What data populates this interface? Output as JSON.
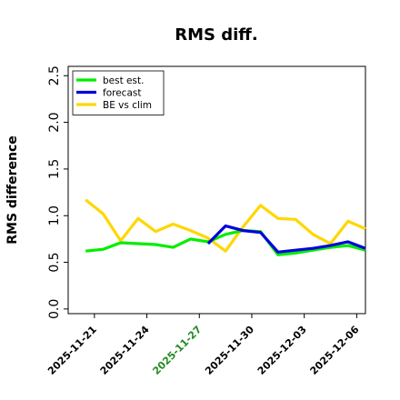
{
  "chart_data": {
    "type": "line",
    "title": "RMS diff.",
    "xlabel": "",
    "ylabel": "RMS difference",
    "xlim": [
      "2025-11-19T12:00",
      "2025-12-06T12:00"
    ],
    "ylim": [
      -0.05,
      2.6
    ],
    "yticks": [
      0.0,
      0.5,
      1.0,
      1.5,
      2.0,
      2.5
    ],
    "ytick_labels": [
      "0.0",
      "0.5",
      "1.0",
      "1.5",
      "2.0",
      "2.5"
    ],
    "xticks": [
      "2025-11-21",
      "2025-11-24",
      "2025-11-27",
      "2025-11-30",
      "2025-12-03",
      "2025-12-06"
    ],
    "xtick_labels": [
      "2025-11-21",
      "2025-11-24",
      "2025-11-27",
      "2025-11-30",
      "2025-12-03",
      "2025-12-06"
    ],
    "xtick_highlight": "2025-11-27",
    "xtick_highlight_color": "#228b22",
    "legend_position": "top-left",
    "grid": false,
    "series": [
      {
        "name": "best est.",
        "color": "#00ee00",
        "x": [
          "2025-11-20T12:00",
          "2025-11-21T12:00",
          "2025-11-22T12:00",
          "2025-11-23T12:00",
          "2025-11-24T12:00",
          "2025-11-25T12:00",
          "2025-11-26T12:00",
          "2025-11-27T12:00",
          "2025-11-28T12:00",
          "2025-11-29T12:00",
          "2025-11-30T12:00",
          "2025-12-01T12:00",
          "2025-12-02T12:00",
          "2025-12-03T12:00",
          "2025-12-04T12:00",
          "2025-12-05T12:00",
          "2025-12-06T12:00"
        ],
        "y": [
          0.62,
          0.64,
          0.71,
          0.7,
          0.69,
          0.66,
          0.75,
          0.72,
          0.8,
          0.84,
          0.83,
          0.58,
          0.6,
          0.63,
          0.66,
          0.68,
          0.63
        ]
      },
      {
        "name": "forecast",
        "color": "#0000dd",
        "x": [
          "2025-11-27T12:00",
          "2025-11-28T12:00",
          "2025-11-29T12:00",
          "2025-11-30T12:00",
          "2025-12-01T12:00",
          "2025-12-02T12:00",
          "2025-12-03T12:00",
          "2025-12-04T12:00",
          "2025-12-05T12:00",
          "2025-12-06T12:00"
        ],
        "y": [
          0.7,
          0.89,
          0.84,
          0.82,
          0.61,
          0.63,
          0.65,
          0.68,
          0.72,
          0.65
        ]
      },
      {
        "name": "BE vs clim",
        "color": "#ffd700",
        "x": [
          "2025-11-20T12:00",
          "2025-11-21T12:00",
          "2025-11-22T12:00",
          "2025-11-23T12:00",
          "2025-11-24T12:00",
          "2025-11-25T12:00",
          "2025-11-26T12:00",
          "2025-11-27T12:00",
          "2025-11-28T12:00",
          "2025-11-29T12:00",
          "2025-11-30T12:00",
          "2025-12-01T12:00",
          "2025-12-02T12:00",
          "2025-12-03T12:00",
          "2025-12-04T12:00",
          "2025-12-05T12:00",
          "2025-12-06T12:00"
        ],
        "y": [
          1.17,
          1.02,
          0.73,
          0.97,
          0.83,
          0.91,
          0.84,
          0.76,
          0.62,
          0.88,
          1.11,
          0.97,
          0.96,
          0.8,
          0.7,
          0.94,
          0.86
        ]
      }
    ]
  }
}
